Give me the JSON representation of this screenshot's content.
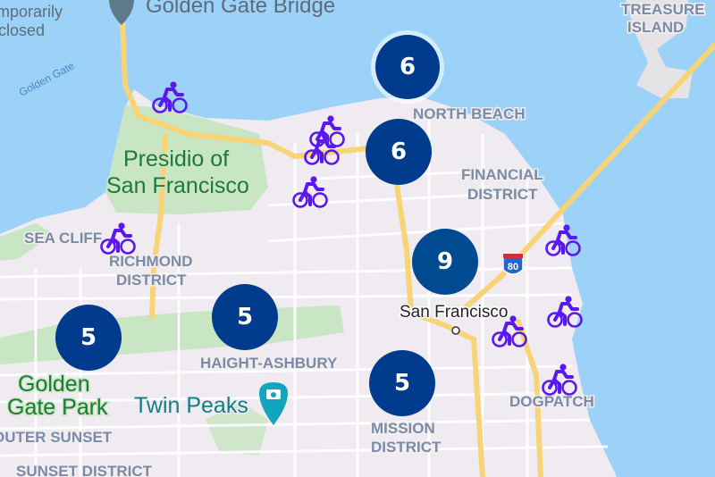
{
  "map": {
    "labels": {
      "golden_gate_bridge": "Golden Gate Bridge",
      "temporarily_closed": [
        "mporarily",
        "closed"
      ],
      "golden_gate_water": "Golden Gate",
      "treasure_island": [
        "TREASURE",
        "ISLAND"
      ],
      "north_beach": "NORTH BEACH",
      "financial_district": [
        "FINANCIAL",
        "DISTRICT"
      ],
      "presidio": [
        "Presidio of",
        "San Francisco"
      ],
      "sea_cliff": "SEA CLIFF",
      "richmond": [
        "RICHMOND",
        "DISTRICT"
      ],
      "san_francisco": "San Francisco",
      "haight_ashbury": "HAIGHT-ASHBURY",
      "golden_gate_park": [
        "Golden",
        "Gate Park"
      ],
      "twin_peaks": "Twin Peaks",
      "mission": [
        "MISSION",
        "DISTRICT"
      ],
      "dogpatch": "DOGPATCH",
      "outer_sunset": "OUTER SUNSET",
      "sunset_district": "SUNSET DISTRICT",
      "interstate": "80"
    },
    "clusters": [
      {
        "count": "6",
        "area": "north-beach-waterfront"
      },
      {
        "count": "6",
        "area": "north-beach"
      },
      {
        "count": "9",
        "area": "downtown"
      },
      {
        "count": "5",
        "area": "haight-ashbury"
      },
      {
        "count": "5",
        "area": "golden-gate-park"
      },
      {
        "count": "5",
        "area": "mission"
      }
    ],
    "bike_markers": 10,
    "colors": {
      "water": "#9dd2f8",
      "land": "#efebf0",
      "park": "#c8e6c4",
      "highway": "#f8d477",
      "cluster": "#003b8e",
      "bike_icon": "#5a17f0"
    }
  }
}
